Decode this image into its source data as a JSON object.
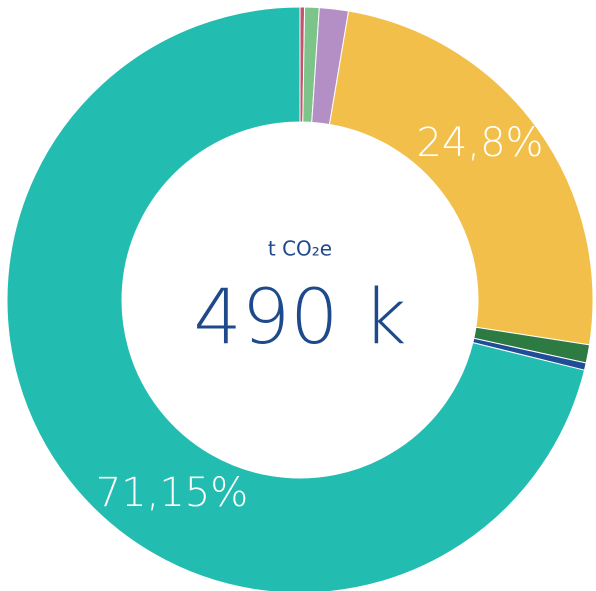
{
  "chart_data": {
    "type": "donut",
    "center_label": "t CO₂e",
    "center_value": "490 k",
    "values": [
      0.25,
      0.8,
      1.6,
      24.8,
      1.0,
      0.4,
      71.15
    ],
    "value_labels": [
      null,
      null,
      null,
      "24,8%",
      null,
      null,
      "71,15%"
    ],
    "colors": [
      "#c0566b",
      "#7cc48a",
      "#b48fc6",
      "#f2c04a",
      "#2e7a43",
      "#1f4e96",
      "#22bcb0"
    ]
  }
}
